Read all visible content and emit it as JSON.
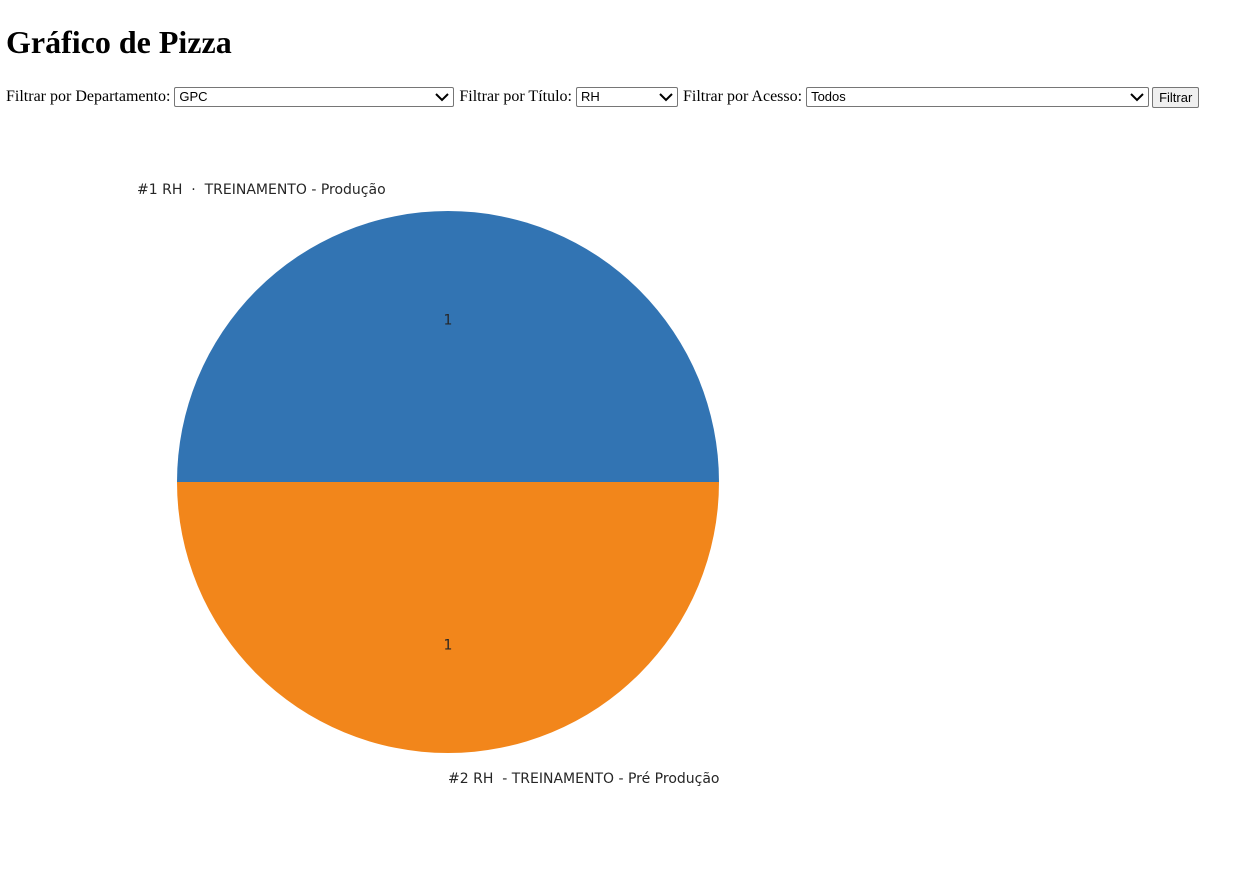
{
  "page": {
    "title": "Gráfico de Pizza"
  },
  "filters": {
    "department": {
      "label": "Filtrar por Departamento:",
      "selected": "GPC"
    },
    "title": {
      "label": "Filtrar por Título:",
      "selected": "RH"
    },
    "access": {
      "label": "Filtrar por Acesso:",
      "selected": "Todos"
    },
    "submit_label": "Filtrar"
  },
  "icons": {
    "dropdown": "chevron-down-icon"
  },
  "chart_data": {
    "type": "pie",
    "title": "",
    "categories": [
      "#1 RH  ·  TREINAMENTO - Produção",
      "#2 RH  - TREINAMENTO - Pré Produção"
    ],
    "values": [
      1,
      1
    ],
    "value_labels": [
      "1",
      "1"
    ],
    "colors": [
      "#3274b3",
      "#f2861b"
    ],
    "start_angle_deg": 0,
    "direction": "counterclockwise"
  }
}
